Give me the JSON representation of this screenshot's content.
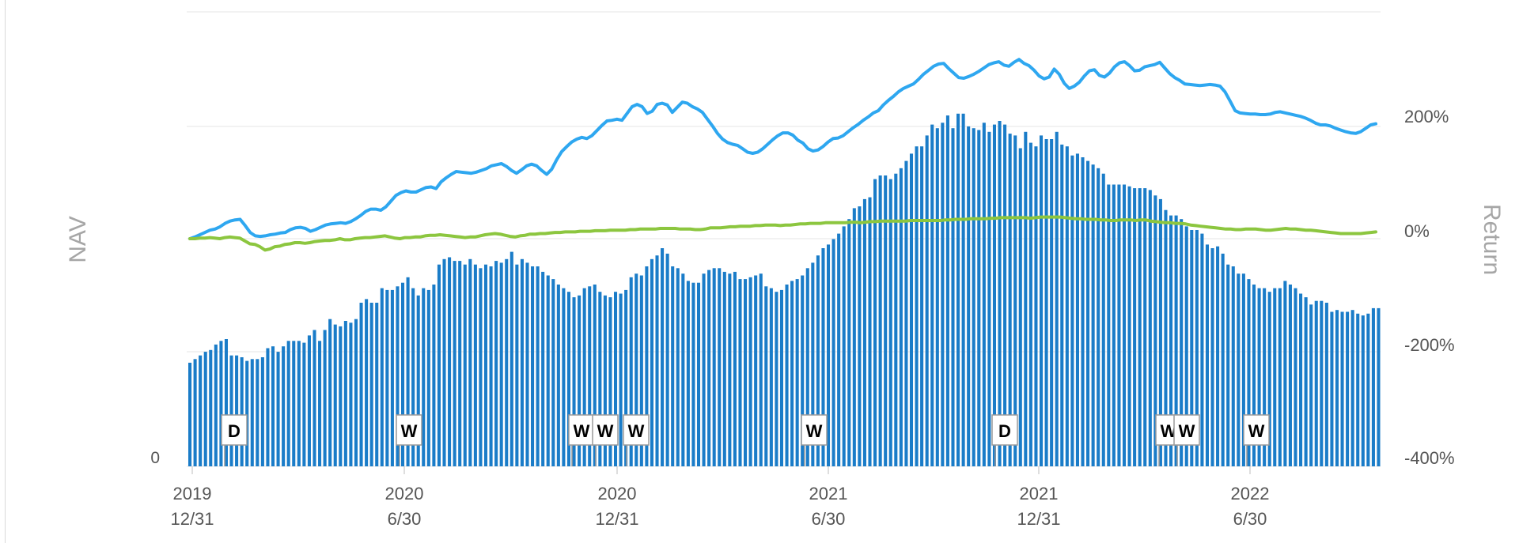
{
  "chart_data": {
    "type": "bar",
    "left_axis_title": "NAV",
    "right_axis_title": "Return",
    "left_axis_ticks": [
      "0"
    ],
    "right_axis_ticks": [
      "200%",
      "0%",
      "-200%",
      "-400%"
    ],
    "right_axis_range": [
      -400,
      400
    ],
    "x_ticks": [
      {
        "year": "2019",
        "date": "12/31"
      },
      {
        "year": "2020",
        "date": "6/30"
      },
      {
        "year": "2020",
        "date": "12/31"
      },
      {
        "year": "2021",
        "date": "6/30"
      },
      {
        "year": "2021",
        "date": "12/31"
      },
      {
        "year": "2022",
        "date": "6/30"
      }
    ],
    "nav_bars": [
      0.57,
      0.59,
      0.61,
      0.63,
      0.64,
      0.67,
      0.69,
      0.7,
      0.61,
      0.61,
      0.6,
      0.58,
      0.59,
      0.59,
      0.6,
      0.65,
      0.66,
      0.63,
      0.66,
      0.69,
      0.69,
      0.69,
      0.68,
      0.72,
      0.75,
      0.69,
      0.75,
      0.81,
      0.78,
      0.77,
      0.8,
      0.79,
      0.81,
      0.9,
      0.92,
      0.9,
      0.9,
      0.98,
      0.97,
      0.97,
      0.99,
      1.01,
      1.04,
      0.98,
      0.94,
      0.98,
      0.97,
      1.0,
      1.11,
      1.14,
      1.15,
      1.13,
      1.13,
      1.11,
      1.14,
      1.11,
      1.09,
      1.11,
      1.1,
      1.13,
      1.12,
      1.14,
      1.18,
      1.11,
      1.14,
      1.12,
      1.1,
      1.1,
      1.07,
      1.05,
      1.03,
      1.0,
      0.98,
      0.96,
      0.93,
      0.94,
      0.98,
      0.99,
      1.0,
      0.96,
      0.94,
      0.93,
      0.96,
      0.95,
      0.97,
      1.04,
      1.06,
      1.05,
      1.1,
      1.14,
      1.16,
      1.2,
      1.17,
      1.1,
      1.09,
      1.06,
      1.02,
      1.01,
      1.01,
      1.06,
      1.08,
      1.09,
      1.09,
      1.07,
      1.06,
      1.07,
      1.03,
      1.03,
      1.04,
      1.05,
      1.06,
      0.99,
      0.98,
      0.96,
      0.97,
      1.0,
      1.02,
      1.03,
      1.05,
      1.09,
      1.12,
      1.16,
      1.2,
      1.22,
      1.25,
      1.28,
      1.32,
      1.36,
      1.42,
      1.43,
      1.47,
      1.48,
      1.58,
      1.6,
      1.6,
      1.58,
      1.61,
      1.64,
      1.68,
      1.72,
      1.76,
      1.76,
      1.82,
      1.88,
      1.86,
      1.89,
      1.93,
      1.86,
      1.94,
      1.94,
      1.87,
      1.86,
      1.85,
      1.89,
      1.84,
      1.88,
      1.9,
      1.88,
      1.83,
      1.82,
      1.75,
      1.84,
      1.78,
      1.76,
      1.82,
      1.8,
      1.8,
      1.84,
      1.77,
      1.76,
      1.71,
      1.72,
      1.7,
      1.68,
      1.66,
      1.64,
      1.61,
      1.55,
      1.55,
      1.55,
      1.55,
      1.54,
      1.53,
      1.53,
      1.53,
      1.52,
      1.49,
      1.47,
      1.41,
      1.38,
      1.38,
      1.36,
      1.32,
      1.3,
      1.3,
      1.28,
      1.22,
      1.2,
      1.21,
      1.17,
      1.11,
      1.1,
      1.06,
      1.06,
      1.03,
      1.0,
      0.98,
      0.98,
      0.96,
      0.98,
      0.98,
      1.02,
      1.0,
      0.98,
      0.95,
      0.93,
      0.89,
      0.91,
      0.91,
      0.9,
      0.85,
      0.86,
      0.85,
      0.85,
      0.86,
      0.84,
      0.83,
      0.84,
      0.87,
      0.87
    ],
    "series": [
      {
        "values_pct": [
          0,
          3,
          7,
          11,
          15,
          17,
          21,
          27,
          31,
          33,
          34,
          23,
          11,
          5,
          4,
          5,
          7,
          8,
          10,
          11,
          16,
          19,
          20,
          18,
          13,
          16,
          20,
          24,
          26,
          27,
          28,
          27,
          30,
          35,
          41,
          48,
          52,
          52,
          50,
          56,
          66,
          76,
          81,
          84,
          82,
          82,
          86,
          90,
          91,
          88,
          100,
          107,
          113,
          118,
          117,
          116,
          115,
          117,
          120,
          123,
          128,
          130,
          132,
          127,
          120,
          115,
          121,
          128,
          131,
          128,
          120,
          113,
          122,
          139,
          153,
          162,
          170,
          175,
          178,
          176,
          181,
          190,
          199,
          207,
          208,
          210,
          208,
          220,
          232,
          236,
          232,
          220,
          224,
          236,
          238,
          235,
          222,
          231,
          240,
          238,
          232,
          228,
          222,
          210,
          198,
          185,
          175,
          169,
          166,
          164,
          158,
          152,
          150,
          152,
          158,
          166,
          174,
          181,
          186,
          186,
          182,
          173,
          168,
          158,
          154,
          156,
          162,
          170,
          176,
          177,
          181,
          188,
          195,
          201,
          208,
          214,
          221,
          225,
          235,
          243,
          250,
          258,
          264,
          268,
          272,
          280,
          289,
          296,
          303,
          307,
          308,
          299,
          291,
          283,
          282,
          285,
          289,
          294,
          300,
          306,
          309,
          311,
          305,
          303,
          310,
          315,
          308,
          304,
          296,
          286,
          281,
          284,
          298,
          289,
          273,
          264,
          268,
          275,
          286,
          295,
          297,
          287,
          284,
          291,
          302,
          309,
          311,
          304,
          295,
          296,
          302,
          304,
          306,
          310,
          300,
          290,
          283,
          278,
          272,
          271,
          270,
          269,
          270,
          271,
          270,
          268,
          258,
          242,
          225,
          221,
          220,
          219,
          219,
          218,
          218,
          219,
          222,
          223,
          221,
          219,
          217,
          215,
          212,
          208,
          203,
          200,
          200,
          198,
          194,
          191,
          188,
          186,
          185,
          188,
          194,
          200,
          202
        ],
        "color": "#2ea7f0"
      },
      {
        "values_pct": [
          0,
          0,
          1,
          1,
          2,
          1,
          0,
          2,
          3,
          2,
          1,
          -4,
          -9,
          -10,
          -14,
          -20,
          -18,
          -14,
          -13,
          -10,
          -9,
          -7,
          -7,
          -8,
          -7,
          -5,
          -4,
          -3,
          -3,
          -2,
          0,
          -2,
          -2,
          0,
          1,
          2,
          2,
          3,
          4,
          5,
          3,
          1,
          0,
          2,
          2,
          3,
          3,
          5,
          6,
          6,
          7,
          6,
          5,
          4,
          3,
          2,
          3,
          3,
          5,
          7,
          8,
          9,
          8,
          6,
          4,
          3,
          5,
          6,
          8,
          8,
          9,
          9,
          10,
          11,
          11,
          12,
          12,
          12,
          13,
          13,
          13,
          14,
          14,
          14,
          15,
          15,
          15,
          15,
          16,
          16,
          17,
          17,
          17,
          17,
          18,
          18,
          18,
          18,
          17,
          17,
          17,
          16,
          16,
          17,
          19,
          19,
          19,
          20,
          21,
          21,
          22,
          22,
          22,
          23,
          23,
          24,
          24,
          24,
          23,
          24,
          24,
          25,
          26,
          26,
          27,
          27,
          27,
          28,
          28,
          28,
          28,
          28,
          29,
          29,
          28,
          29,
          30,
          30,
          31,
          31,
          31,
          31,
          31,
          31,
          32,
          32,
          32,
          32,
          32,
          32,
          32,
          33,
          33,
          34,
          34,
          34,
          35,
          35,
          35,
          35,
          36,
          36,
          37,
          37,
          37,
          37,
          37,
          37,
          36,
          37,
          38,
          38,
          38,
          38,
          38,
          37,
          36,
          35,
          35,
          34,
          34,
          34,
          33,
          33,
          32,
          32,
          33,
          33,
          33,
          32,
          33,
          33,
          31,
          30,
          29,
          28,
          28,
          27,
          27,
          26,
          24,
          23,
          22,
          21,
          20,
          19,
          18,
          17,
          17,
          16,
          16,
          17,
          17,
          17,
          16,
          15,
          15,
          16,
          17,
          18,
          17,
          17,
          16,
          15,
          15,
          14,
          13,
          12,
          11,
          10,
          9,
          9,
          9,
          9,
          9,
          10,
          11,
          12
        ],
        "color": "#8cc63f"
      }
    ],
    "markers": [
      "D",
      "W",
      "W",
      "W",
      "W",
      "W",
      "D",
      "W",
      "W",
      "W"
    ],
    "colors": {
      "bars": "#1a7cc8",
      "grid": "#e6e6e6",
      "tick_text": "#555555",
      "axis_title": "#a6a6a6"
    }
  }
}
